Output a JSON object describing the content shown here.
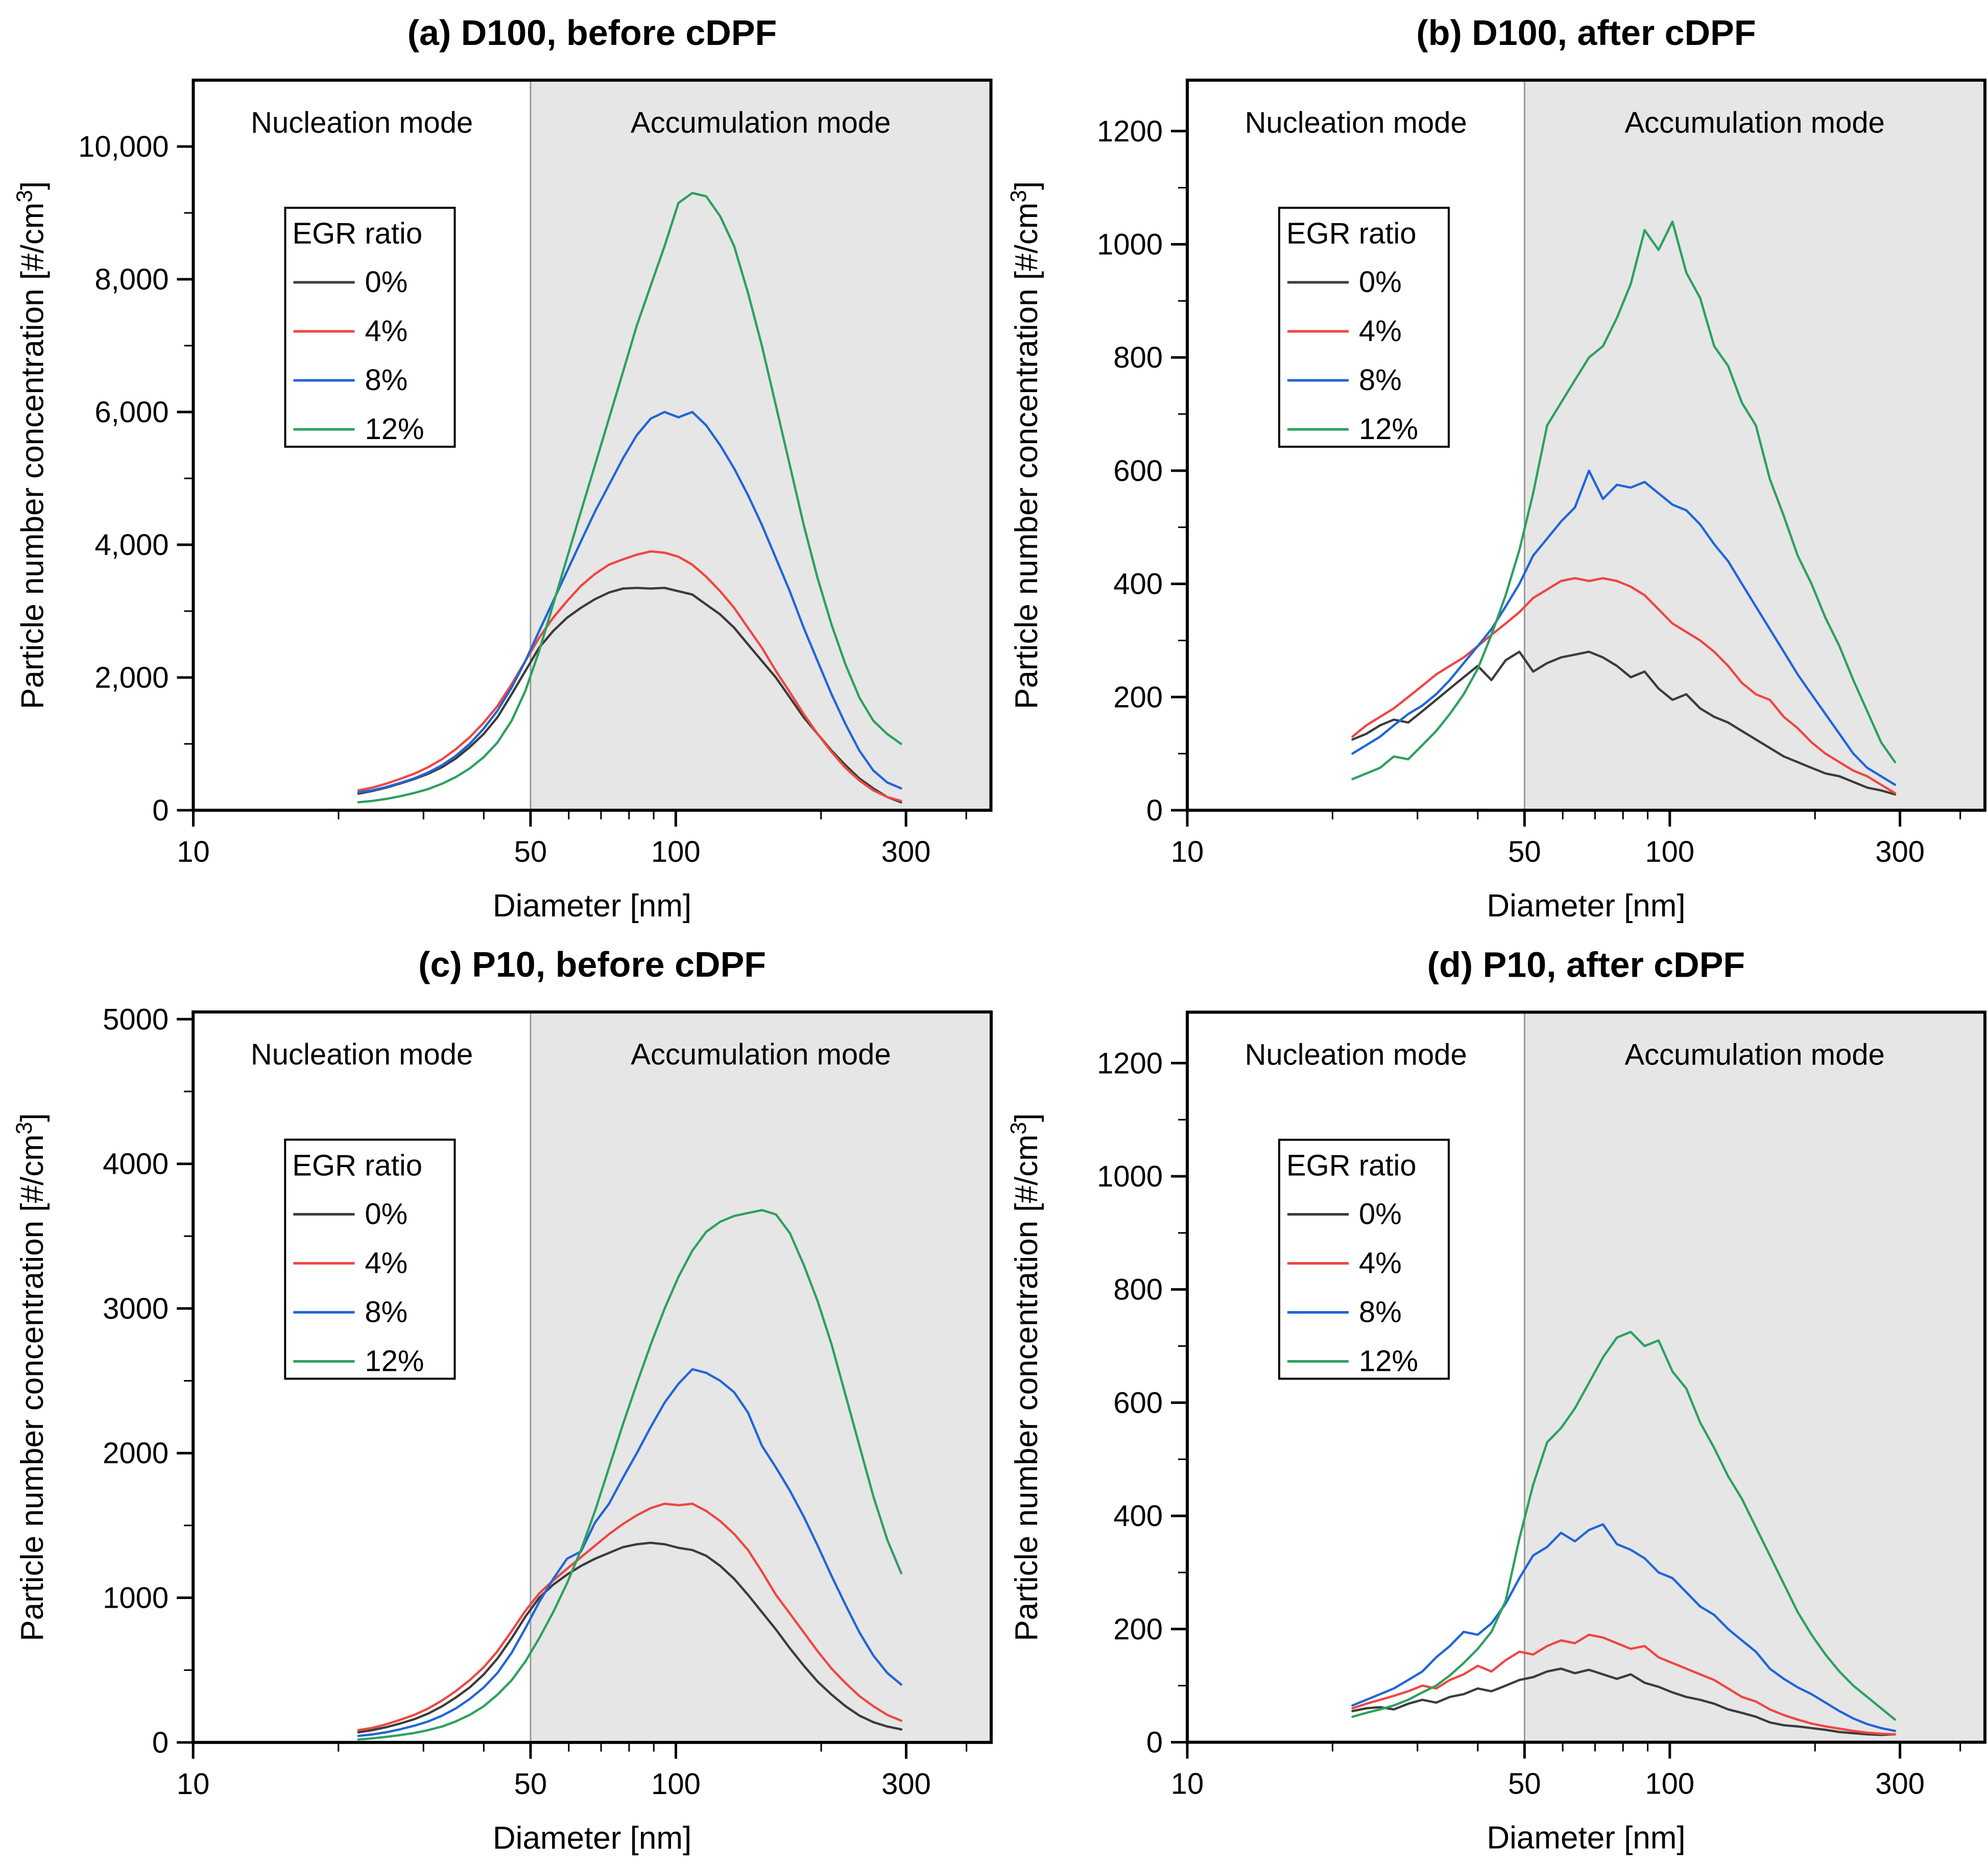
{
  "chart_data": {
    "type": "line",
    "x_label": "Diameter [nm]",
    "y_label_parts": [
      "Particle number concentration [#/cm",
      "3",
      "]"
    ],
    "x_scale": "log",
    "x_range": [
      10,
      450
    ],
    "x_ticks": [
      10,
      50,
      100,
      300
    ],
    "x_minor_ticks": [
      20,
      30,
      40,
      60,
      70,
      80,
      90,
      200,
      400
    ],
    "boundary_nm": 50,
    "region_labels": {
      "left": "Nucleation mode",
      "right": "Accumulation mode"
    },
    "legend": {
      "title": "EGR ratio",
      "entries": [
        {
          "key": "p0",
          "label": "0%",
          "color": "#3c3c3c"
        },
        {
          "key": "p4",
          "label": "4%",
          "color": "#ee4743"
        },
        {
          "key": "p8",
          "label": "8%",
          "color": "#2066d9"
        },
        {
          "key": "p12",
          "label": "12%",
          "color": "#2da15e"
        }
      ]
    },
    "colors": {
      "shade": "#e6e6e6",
      "boundary": "#9a9a9a",
      "frame": "#000000"
    },
    "x": [
      22,
      23.5,
      25.1,
      26.8,
      28.7,
      30.7,
      32.8,
      35,
      37.4,
      40,
      42.7,
      45.7,
      48.8,
      52.1,
      55.7,
      59.5,
      63.6,
      68,
      72.7,
      77.7,
      83,
      88.7,
      94.8,
      101.3,
      108.2,
      115.6,
      123.6,
      132.1,
      141.1,
      150.8,
      161.2,
      172.3,
      184.1,
      196.7,
      210.2,
      224.7,
      240.1,
      256.6,
      274.2,
      293
    ],
    "panels": [
      {
        "key": "a",
        "title": "(a) D100, before cDPF",
        "y_max": 11000,
        "y_major": 2000,
        "y_minor": 1000,
        "y_tick_labels": [
          "0",
          "2,000",
          "4,000",
          "6,000",
          "8,000",
          "10,000"
        ],
        "series": {
          "p0": [
            250,
            290,
            340,
            400,
            470,
            550,
            650,
            780,
            950,
            1150,
            1400,
            1750,
            2100,
            2450,
            2700,
            2900,
            3050,
            3180,
            3280,
            3340,
            3350,
            3340,
            3350,
            3300,
            3250,
            3100,
            2950,
            2750,
            2500,
            2250,
            2000,
            1700,
            1400,
            1150,
            900,
            680,
            480,
            330,
            200,
            120
          ],
          "p4": [
            300,
            340,
            400,
            470,
            550,
            650,
            770,
            920,
            1100,
            1320,
            1570,
            1900,
            2250,
            2600,
            2900,
            3150,
            3380,
            3560,
            3700,
            3780,
            3850,
            3900,
            3880,
            3820,
            3700,
            3520,
            3300,
            3050,
            2750,
            2450,
            2100,
            1780,
            1450,
            1150,
            880,
            640,
            450,
            300,
            200,
            140
          ],
          "p8": [
            270,
            300,
            350,
            410,
            480,
            570,
            680,
            820,
            1000,
            1230,
            1500,
            1850,
            2250,
            2700,
            3150,
            3600,
            4050,
            4500,
            4900,
            5300,
            5650,
            5900,
            6000,
            5920,
            6000,
            5800,
            5500,
            5150,
            4750,
            4300,
            3800,
            3300,
            2750,
            2250,
            1750,
            1300,
            900,
            600,
            420,
            330
          ],
          "p12": [
            120,
            140,
            170,
            210,
            260,
            320,
            400,
            500,
            630,
            800,
            1020,
            1350,
            1800,
            2400,
            3100,
            3800,
            4500,
            5200,
            5900,
            6600,
            7300,
            7900,
            8500,
            9150,
            9300,
            9250,
            8950,
            8500,
            7800,
            7000,
            6100,
            5200,
            4300,
            3500,
            2800,
            2200,
            1700,
            1350,
            1150,
            1000
          ]
        }
      },
      {
        "key": "b",
        "title": "(b) D100, after cDPF",
        "y_max": 1290,
        "y_major": 200,
        "y_minor": 100,
        "y_tick_labels": [
          "0",
          "200",
          "400",
          "600",
          "800",
          "1000",
          "1200"
        ],
        "series": {
          "p0": [
            125,
            135,
            150,
            160,
            155,
            175,
            195,
            215,
            235,
            255,
            230,
            265,
            280,
            245,
            260,
            270,
            275,
            280,
            270,
            255,
            235,
            245,
            215,
            195,
            205,
            180,
            165,
            155,
            140,
            125,
            110,
            95,
            85,
            75,
            65,
            60,
            50,
            40,
            35,
            28
          ],
          "p4": [
            130,
            150,
            165,
            180,
            200,
            220,
            240,
            255,
            270,
            290,
            310,
            330,
            350,
            375,
            390,
            405,
            410,
            405,
            410,
            405,
            395,
            380,
            355,
            330,
            315,
            300,
            280,
            255,
            225,
            205,
            195,
            165,
            145,
            120,
            100,
            85,
            70,
            60,
            45,
            30
          ],
          "p8": [
            100,
            115,
            130,
            150,
            170,
            185,
            205,
            230,
            260,
            290,
            320,
            360,
            400,
            450,
            480,
            510,
            535,
            600,
            550,
            575,
            570,
            580,
            560,
            540,
            530,
            505,
            470,
            440,
            400,
            360,
            320,
            280,
            240,
            205,
            170,
            135,
            100,
            75,
            60,
            45
          ],
          "p12": [
            55,
            65,
            75,
            95,
            90,
            115,
            140,
            170,
            205,
            250,
            310,
            380,
            460,
            560,
            680,
            720,
            760,
            800,
            820,
            870,
            930,
            1025,
            990,
            1040,
            950,
            905,
            820,
            785,
            720,
            680,
            585,
            520,
            450,
            400,
            340,
            290,
            230,
            175,
            120,
            85
          ]
        }
      },
      {
        "key": "c",
        "title": "(c) P10, before cDPF",
        "y_max": 5050,
        "y_major": 1000,
        "y_minor": 500,
        "y_tick_labels": [
          "0",
          "1000",
          "2000",
          "3000",
          "4000",
          "5000"
        ],
        "series": {
          "p0": [
            70,
            85,
            105,
            130,
            160,
            200,
            250,
            310,
            380,
            470,
            580,
            720,
            870,
            1000,
            1090,
            1160,
            1220,
            1270,
            1310,
            1350,
            1370,
            1380,
            1370,
            1345,
            1330,
            1290,
            1220,
            1130,
            1020,
            900,
            780,
            650,
            530,
            420,
            330,
            250,
            185,
            140,
            110,
            90
          ],
          "p4": [
            85,
            100,
            125,
            155,
            190,
            235,
            290,
            355,
            430,
            520,
            630,
            770,
            910,
            1030,
            1120,
            1200,
            1280,
            1360,
            1440,
            1510,
            1570,
            1620,
            1650,
            1640,
            1650,
            1600,
            1530,
            1440,
            1330,
            1180,
            1020,
            890,
            760,
            630,
            510,
            410,
            320,
            250,
            190,
            150
          ],
          "p8": [
            45,
            55,
            70,
            90,
            115,
            145,
            185,
            235,
            300,
            380,
            480,
            620,
            790,
            970,
            1130,
            1270,
            1320,
            1520,
            1650,
            1830,
            2000,
            2180,
            2350,
            2480,
            2580,
            2555,
            2500,
            2420,
            2280,
            2050,
            1900,
            1740,
            1560,
            1360,
            1150,
            950,
            760,
            600,
            480,
            400
          ],
          "p12": [
            20,
            28,
            38,
            50,
            65,
            85,
            110,
            145,
            190,
            250,
            330,
            430,
            560,
            720,
            900,
            1100,
            1330,
            1600,
            1900,
            2200,
            2480,
            2750,
            3000,
            3220,
            3400,
            3530,
            3600,
            3640,
            3660,
            3680,
            3650,
            3520,
            3300,
            3050,
            2750,
            2400,
            2050,
            1700,
            1400,
            1170
          ]
        }
      },
      {
        "key": "d",
        "title": "(d) P10, after cDPF",
        "y_max": 1290,
        "y_major": 200,
        "y_minor": 100,
        "y_tick_labels": [
          "0",
          "200",
          "400",
          "600",
          "800",
          "1000",
          "1200"
        ],
        "series": {
          "p0": [
            55,
            60,
            62,
            58,
            68,
            75,
            70,
            80,
            85,
            95,
            90,
            100,
            110,
            115,
            125,
            130,
            122,
            128,
            120,
            112,
            120,
            105,
            98,
            88,
            80,
            75,
            68,
            58,
            52,
            45,
            35,
            30,
            28,
            25,
            22,
            18,
            16,
            14,
            13,
            14
          ],
          "p4": [
            60,
            68,
            75,
            82,
            90,
            100,
            95,
            110,
            120,
            135,
            125,
            145,
            160,
            155,
            170,
            180,
            175,
            190,
            185,
            175,
            165,
            170,
            150,
            140,
            130,
            120,
            110,
            95,
            80,
            72,
            58,
            48,
            40,
            33,
            28,
            24,
            20,
            17,
            15,
            14
          ],
          "p8": [
            65,
            75,
            85,
            95,
            110,
            125,
            150,
            170,
            195,
            190,
            210,
            245,
            290,
            330,
            345,
            370,
            355,
            375,
            385,
            350,
            340,
            325,
            300,
            290,
            265,
            240,
            225,
            200,
            180,
            160,
            130,
            112,
            97,
            85,
            70,
            55,
            42,
            32,
            25,
            20
          ],
          "p12": [
            45,
            52,
            58,
            65,
            75,
            88,
            100,
            118,
            140,
            165,
            195,
            250,
            360,
            455,
            530,
            555,
            590,
            635,
            680,
            715,
            725,
            700,
            710,
            655,
            625,
            565,
            520,
            470,
            430,
            380,
            330,
            280,
            230,
            190,
            155,
            125,
            100,
            80,
            60,
            40
          ]
        }
      }
    ]
  }
}
